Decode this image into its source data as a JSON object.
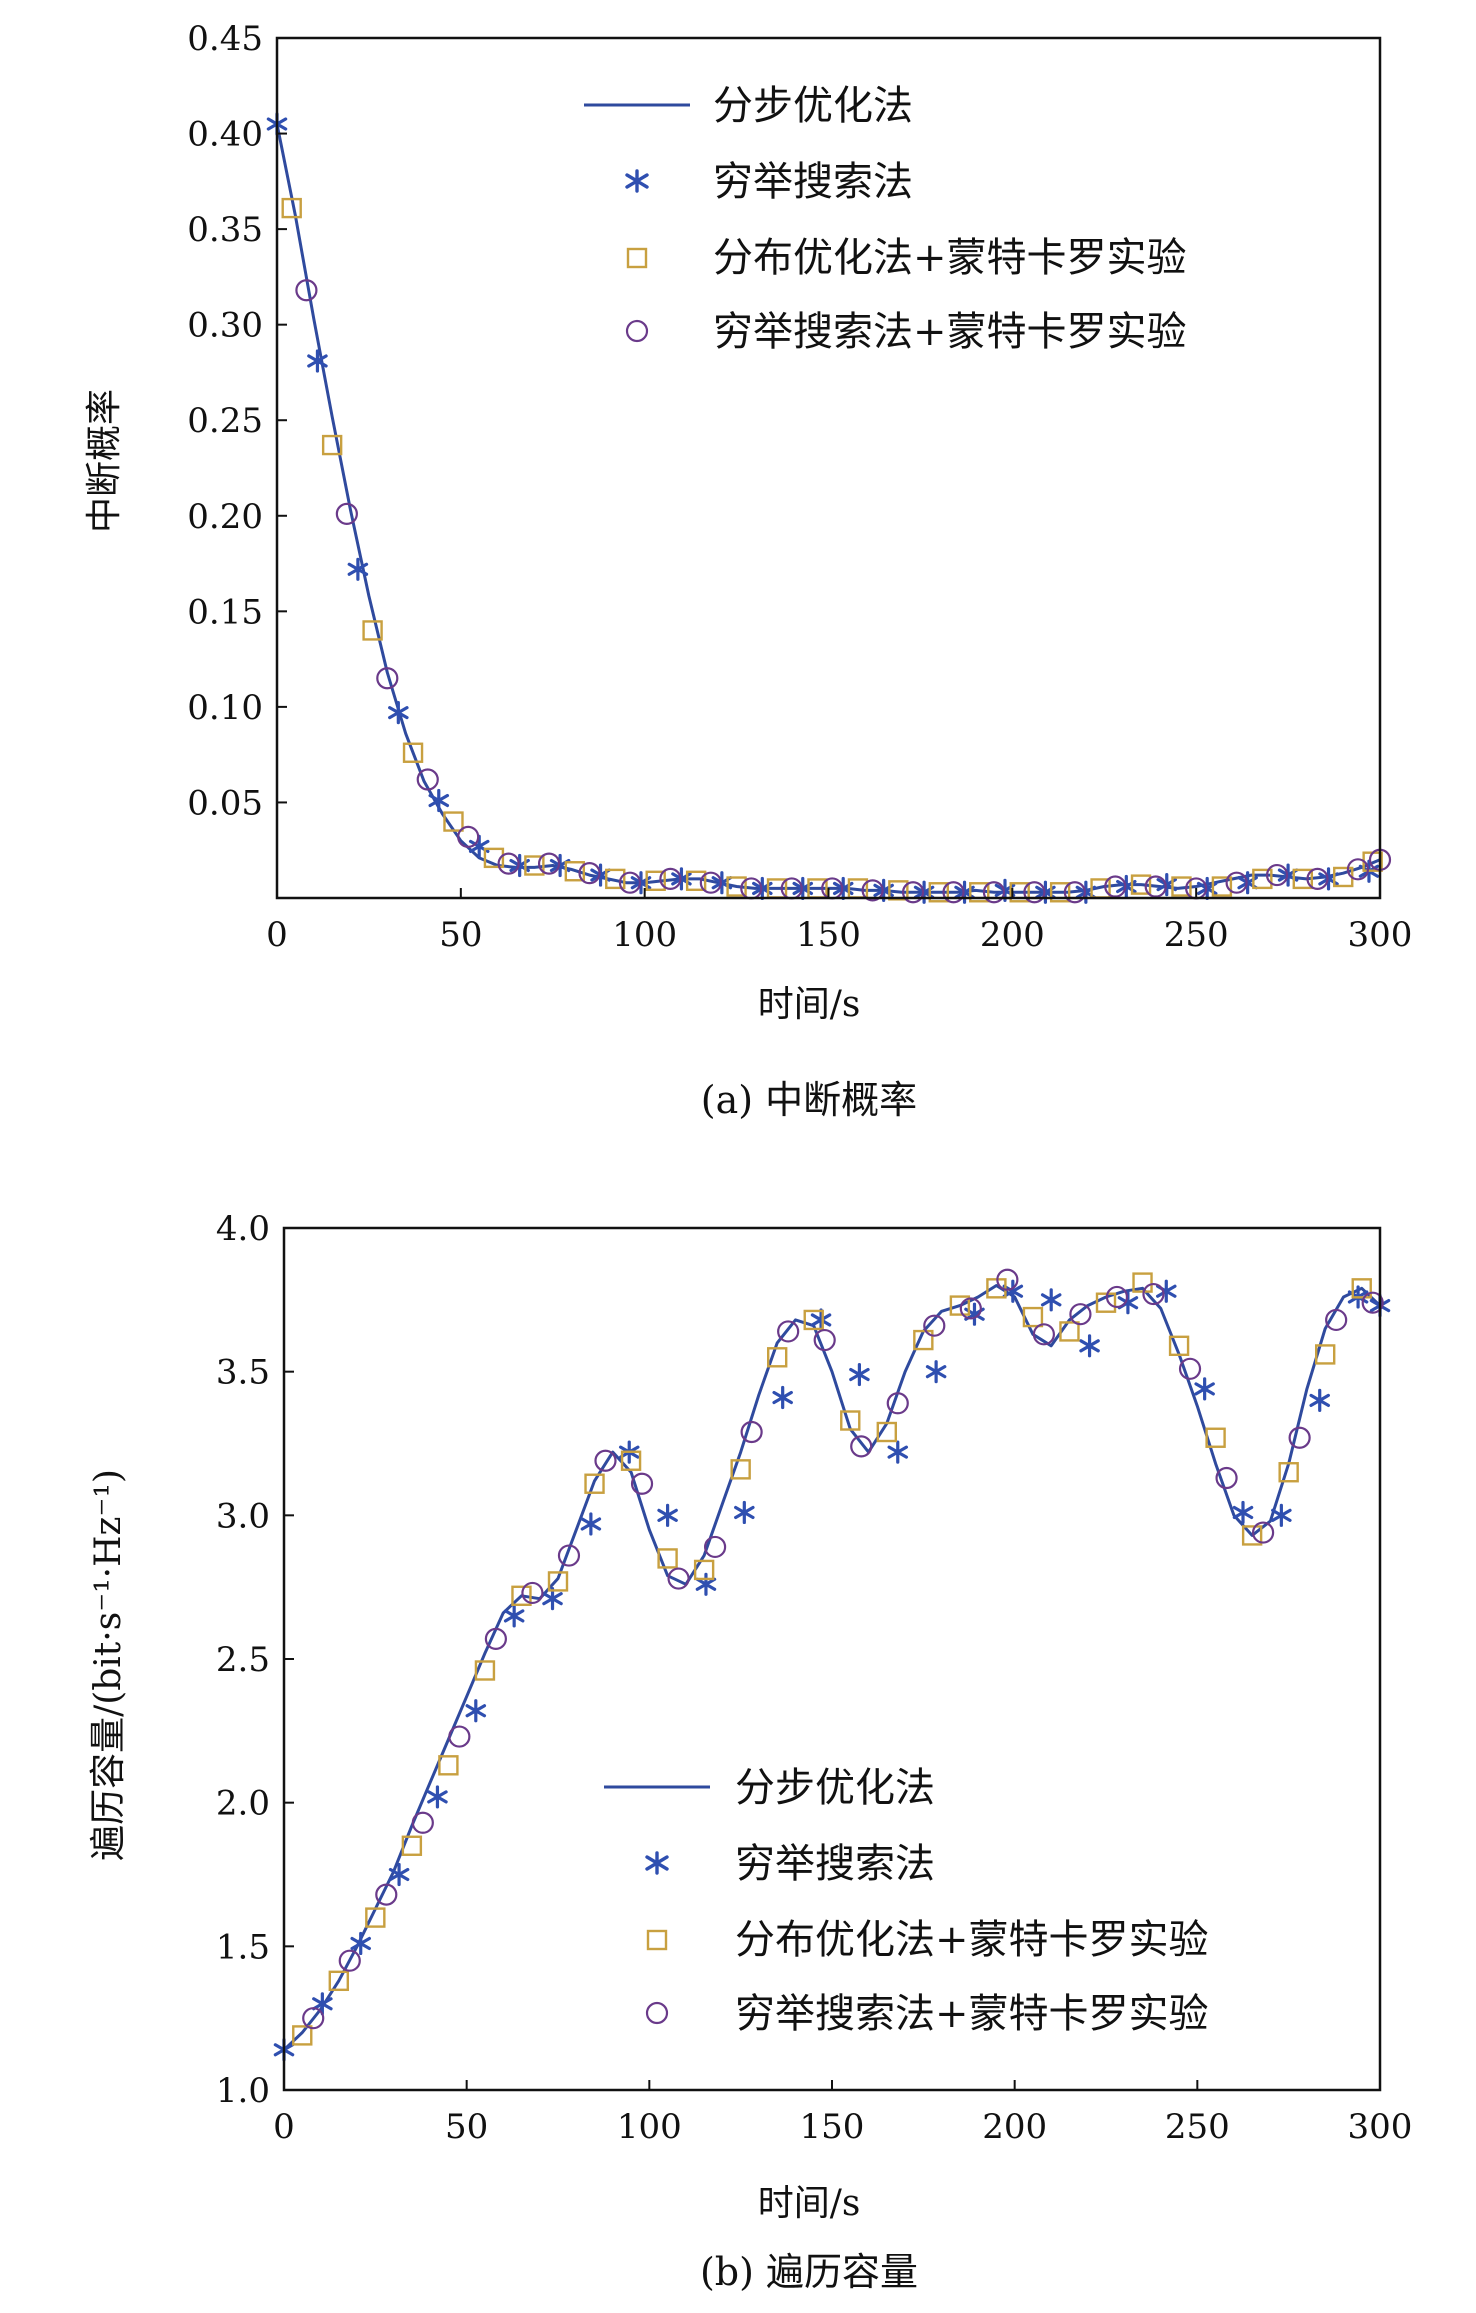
{
  "colors": {
    "line": "#2f4a9e",
    "star": "#2f4fb0",
    "square": "#c8a040",
    "circle": "#6a3a8a",
    "axis": "#111111"
  },
  "legend_labels": [
    "分步优化法",
    "穷举搜索法",
    "分布优化法+蒙特卡罗实验",
    "穷举搜索法+蒙特卡罗实验"
  ],
  "chart_data": [
    {
      "type": "line",
      "title": "(a) 中断概率",
      "xlabel": "时间/s",
      "ylabel": "中断概率",
      "xlim": [
        0,
        300
      ],
      "ylim": [
        0,
        0.45
      ],
      "xticks": [
        "0",
        "50",
        "100",
        "150",
        "200",
        "250",
        "300"
      ],
      "yticks": [
        "0.05",
        "0.10",
        "0.15",
        "0.20",
        "0.25",
        "0.30",
        "0.35",
        "0.40",
        "0.45"
      ],
      "legend_position": "top-right",
      "series": [
        {
          "name": "分步优化法",
          "style": "line",
          "x": [
            0,
            5,
            10,
            15,
            20,
            25,
            30,
            35,
            40,
            45,
            50,
            55,
            60,
            65,
            70,
            75,
            80,
            85,
            90,
            95,
            100,
            105,
            110,
            115,
            120,
            125,
            130,
            135,
            140,
            145,
            150,
            155,
            160,
            165,
            170,
            175,
            180,
            185,
            190,
            195,
            200,
            205,
            210,
            215,
            220,
            225,
            230,
            235,
            240,
            245,
            250,
            255,
            260,
            265,
            270,
            275,
            280,
            285,
            290,
            295,
            300
          ],
          "y": [
            0.405,
            0.357,
            0.303,
            0.252,
            0.203,
            0.158,
            0.118,
            0.086,
            0.061,
            0.044,
            0.03,
            0.021,
            0.017,
            0.016,
            0.016,
            0.017,
            0.015,
            0.012,
            0.01,
            0.008,
            0.008,
            0.009,
            0.01,
            0.01,
            0.008,
            0.006,
            0.005,
            0.005,
            0.005,
            0.005,
            0.005,
            0.005,
            0.004,
            0.004,
            0.003,
            0.003,
            0.003,
            0.003,
            0.004,
            0.003,
            0.003,
            0.003,
            0.003,
            0.003,
            0.004,
            0.006,
            0.007,
            0.007,
            0.006,
            0.005,
            0.006,
            0.008,
            0.01,
            0.012,
            0.012,
            0.011,
            0.01,
            0.011,
            0.013,
            0.016,
            0.02
          ]
        },
        {
          "name": "穷举搜索法",
          "style": "star",
          "x": [
            0,
            11,
            22,
            33,
            44,
            55,
            66,
            77,
            88,
            99,
            110,
            121,
            132,
            143,
            154,
            165,
            176,
            187,
            198,
            209,
            220,
            231,
            242,
            253,
            264,
            275,
            286,
            297
          ],
          "y": [
            0.405,
            0.281,
            0.172,
            0.097,
            0.051,
            0.027,
            0.017,
            0.017,
            0.012,
            0.008,
            0.01,
            0.008,
            0.005,
            0.005,
            0.005,
            0.004,
            0.003,
            0.003,
            0.004,
            0.003,
            0.003,
            0.006,
            0.007,
            0.005,
            0.008,
            0.012,
            0.01,
            0.014
          ]
        },
        {
          "name": "分布优化法+蒙特卡罗实验",
          "style": "square",
          "x": [
            4,
            15,
            26,
            37,
            48,
            59,
            70,
            81,
            92,
            103,
            114,
            125,
            136,
            147,
            158,
            169,
            180,
            191,
            202,
            213,
            224,
            235,
            246,
            257,
            268,
            279,
            290,
            298
          ],
          "y": [
            0.361,
            0.237,
            0.14,
            0.076,
            0.04,
            0.021,
            0.017,
            0.014,
            0.01,
            0.009,
            0.009,
            0.006,
            0.005,
            0.005,
            0.005,
            0.004,
            0.003,
            0.003,
            0.003,
            0.003,
            0.005,
            0.007,
            0.006,
            0.006,
            0.01,
            0.01,
            0.011,
            0.019
          ]
        },
        {
          "name": "穷举搜索法+蒙特卡罗实验",
          "style": "circle",
          "x": [
            8,
            19,
            30,
            41,
            52,
            63,
            74,
            85,
            96,
            107,
            118,
            129,
            140,
            151,
            162,
            173,
            184,
            195,
            206,
            217,
            228,
            239,
            250,
            261,
            272,
            283,
            294,
            300
          ],
          "y": [
            0.318,
            0.201,
            0.115,
            0.062,
            0.032,
            0.018,
            0.018,
            0.013,
            0.008,
            0.01,
            0.008,
            0.005,
            0.005,
            0.005,
            0.004,
            0.003,
            0.003,
            0.003,
            0.003,
            0.003,
            0.006,
            0.006,
            0.005,
            0.008,
            0.012,
            0.01,
            0.015,
            0.02
          ]
        }
      ]
    },
    {
      "type": "line",
      "title": "(b) 遍历容量",
      "xlabel": "时间/s",
      "ylabel": "遍历容量/(bit·s⁻¹·Hz⁻¹)",
      "xlim": [
        0,
        300
      ],
      "ylim": [
        1.0,
        4.0
      ],
      "xticks": [
        "0",
        "50",
        "100",
        "150",
        "200",
        "250",
        "300"
      ],
      "yticks": [
        "1.0",
        "1.5",
        "2.0",
        "2.5",
        "3.0",
        "3.5",
        "4.0"
      ],
      "legend_position": "bottom-right",
      "series": [
        {
          "name": "分步优化法",
          "style": "line",
          "x": [
            0,
            5,
            10,
            15,
            20,
            25,
            30,
            35,
            40,
            45,
            50,
            55,
            60,
            65,
            70,
            75,
            80,
            85,
            90,
            95,
            100,
            105,
            110,
            115,
            120,
            125,
            130,
            135,
            140,
            145,
            150,
            155,
            160,
            165,
            170,
            175,
            180,
            185,
            190,
            195,
            200,
            205,
            210,
            215,
            220,
            225,
            230,
            235,
            240,
            245,
            250,
            255,
            260,
            265,
            270,
            275,
            280,
            285,
            290,
            295,
            300
          ],
          "y": [
            1.14,
            1.2,
            1.28,
            1.38,
            1.5,
            1.63,
            1.76,
            1.92,
            2.07,
            2.22,
            2.37,
            2.52,
            2.66,
            2.72,
            2.71,
            2.78,
            2.95,
            3.12,
            3.22,
            3.15,
            2.95,
            2.79,
            2.76,
            2.86,
            3.04,
            3.22,
            3.42,
            3.6,
            3.68,
            3.66,
            3.5,
            3.3,
            3.22,
            3.32,
            3.5,
            3.64,
            3.71,
            3.73,
            3.76,
            3.8,
            3.76,
            3.63,
            3.59,
            3.68,
            3.73,
            3.76,
            3.78,
            3.79,
            3.72,
            3.56,
            3.38,
            3.18,
            3.0,
            2.93,
            2.98,
            3.18,
            3.44,
            3.65,
            3.76,
            3.79,
            3.73
          ]
        },
        {
          "name": "穷举搜索法",
          "style": "star",
          "x": [
            0,
            10.5,
            21,
            31.5,
            42,
            52.5,
            63,
            73.5,
            84,
            94.5,
            105,
            115.5,
            126,
            136.5,
            147,
            157.5,
            168,
            178.5,
            189,
            199.5,
            210,
            220.5,
            231,
            241.5,
            252,
            262.5,
            273,
            283.5,
            294,
            300
          ],
          "y": [
            1.14,
            1.3,
            1.51,
            1.75,
            2.02,
            2.32,
            2.65,
            2.71,
            2.97,
            3.22,
            3.0,
            2.76,
            3.01,
            3.41,
            3.68,
            3.49,
            3.22,
            3.5,
            3.7,
            3.78,
            3.75,
            3.59,
            3.74,
            3.78,
            3.44,
            3.01,
            3.0,
            3.4,
            3.76,
            3.73
          ]
        },
        {
          "name": "分布优化法+蒙特卡罗实验",
          "style": "square",
          "x": [
            5,
            15,
            25,
            35,
            45,
            55,
            65,
            75,
            85,
            95,
            105,
            115,
            125,
            135,
            145,
            155,
            165,
            175,
            185,
            195,
            205,
            215,
            225,
            235,
            245,
            255,
            265,
            275,
            285,
            295
          ],
          "y": [
            1.19,
            1.38,
            1.6,
            1.85,
            2.13,
            2.46,
            2.72,
            2.77,
            3.11,
            3.19,
            2.85,
            2.81,
            3.16,
            3.55,
            3.68,
            3.33,
            3.29,
            3.61,
            3.73,
            3.79,
            3.69,
            3.64,
            3.74,
            3.81,
            3.59,
            3.27,
            2.93,
            3.15,
            3.56,
            3.79
          ]
        },
        {
          "name": "穷举搜索法+蒙特卡罗实验",
          "style": "circle",
          "x": [
            8,
            18,
            28,
            38,
            48,
            58,
            68,
            78,
            88,
            98,
            108,
            118,
            128,
            138,
            148,
            158,
            168,
            178,
            188,
            198,
            208,
            218,
            228,
            238,
            248,
            258,
            268,
            278,
            288,
            298
          ],
          "y": [
            1.25,
            1.45,
            1.68,
            1.93,
            2.23,
            2.57,
            2.73,
            2.86,
            3.19,
            3.11,
            2.78,
            2.89,
            3.29,
            3.64,
            3.61,
            3.24,
            3.39,
            3.66,
            3.72,
            3.82,
            3.63,
            3.7,
            3.76,
            3.77,
            3.51,
            3.13,
            2.94,
            3.27,
            3.68,
            3.74
          ]
        }
      ]
    }
  ]
}
